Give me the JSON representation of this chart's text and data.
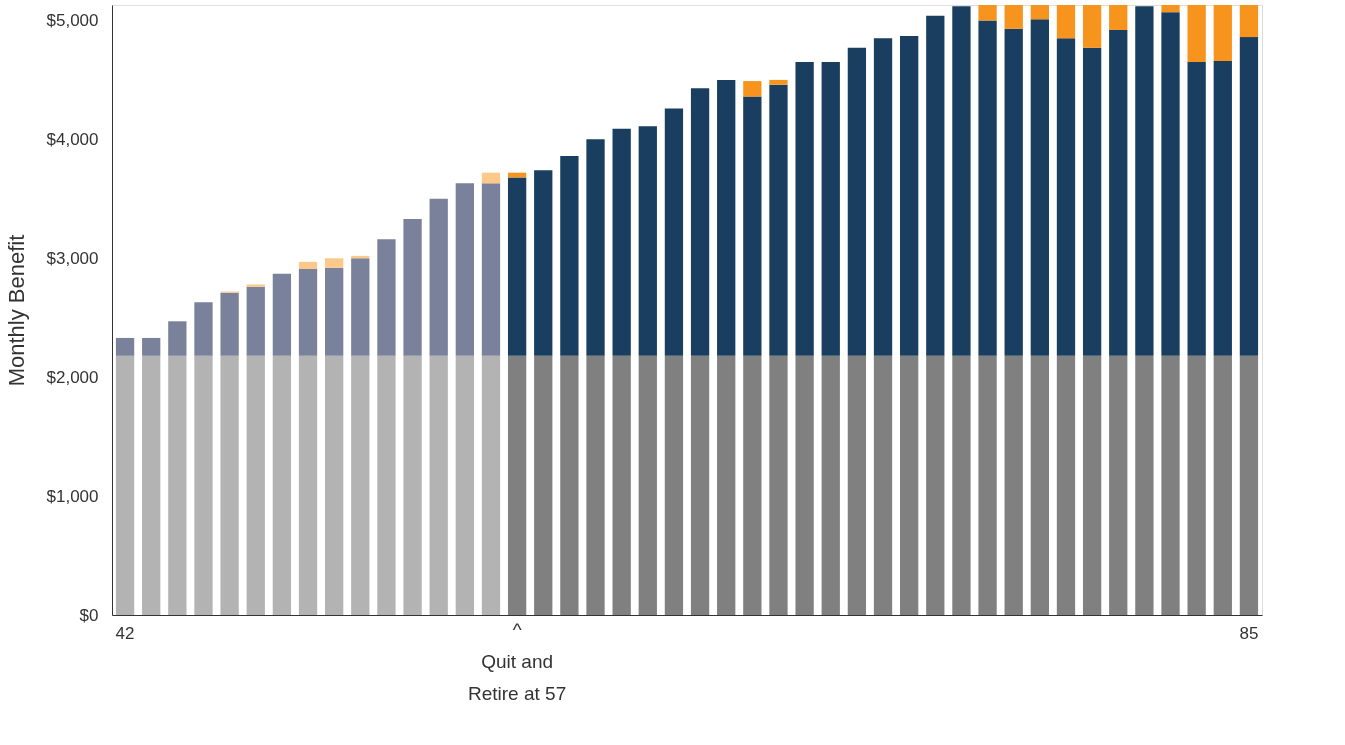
{
  "chart_data": {
    "type": "bar",
    "stacked": true,
    "ylabel": "Monthly Benefit",
    "categories": [
      "42",
      null,
      null,
      null,
      null,
      null,
      null,
      null,
      null,
      null,
      null,
      null,
      null,
      null,
      null,
      null,
      null,
      null,
      null,
      null,
      null,
      null,
      null,
      null,
      null,
      null,
      null,
      null,
      null,
      null,
      null,
      null,
      null,
      null,
      null,
      null,
      null,
      null,
      null,
      null,
      null,
      null,
      null,
      "85"
    ],
    "series": [
      {
        "colors": [
          "#b3b3b3",
          "#b3b3b3",
          "#b3b3b3",
          "#b3b3b3",
          "#b3b3b3",
          "#b3b3b3",
          "#b3b3b3",
          "#b3b3b3",
          "#b3b3b3",
          "#b3b3b3",
          "#b3b3b3",
          "#b3b3b3",
          "#b3b3b3",
          "#b3b3b3",
          "#b3b3b3",
          "#808080",
          "#808080",
          "#808080",
          "#808080",
          "#808080",
          "#808080",
          "#808080",
          "#808080",
          "#808080",
          "#808080",
          "#808080",
          "#808080",
          "#808080",
          "#808080",
          "#808080",
          "#808080",
          "#808080",
          "#808080",
          "#808080",
          "#808080",
          "#808080",
          "#808080",
          "#808080",
          "#808080",
          "#808080",
          "#808080",
          "#808080",
          "#808080",
          "#808080"
        ],
        "values": [
          2180,
          2180,
          2180,
          2180,
          2180,
          2180,
          2180,
          2180,
          2180,
          2180,
          2180,
          2180,
          2180,
          2180,
          2180,
          2180,
          2180,
          2180,
          2180,
          2180,
          2180,
          2180,
          2180,
          2180,
          2180,
          2180,
          2180,
          2180,
          2180,
          2180,
          2180,
          2180,
          2180,
          2180,
          2180,
          2180,
          2180,
          2180,
          2180,
          2180,
          2180,
          2180,
          2180,
          2180
        ]
      },
      {
        "colors": [
          "#7a819b",
          "#7a819b",
          "#7a819b",
          "#7a819b",
          "#7a819b",
          "#7a819b",
          "#7a819b",
          "#7a819b",
          "#7a819b",
          "#7a819b",
          "#7a819b",
          "#7a819b",
          "#7a819b",
          "#7a819b",
          "#7a819b",
          "#1a3e5f",
          "#1a3e5f",
          "#1a3e5f",
          "#1a3e5f",
          "#1a3e5f",
          "#1a3e5f",
          "#1a3e5f",
          "#1a3e5f",
          "#1a3e5f",
          "#1a3e5f",
          "#1a3e5f",
          "#1a3e5f",
          "#1a3e5f",
          "#1a3e5f",
          "#1a3e5f",
          "#1a3e5f",
          "#1a3e5f",
          "#1a3e5f",
          "#1a3e5f",
          "#1a3e5f",
          "#1a3e5f",
          "#1a3e5f",
          "#1a3e5f",
          "#1a3e5f",
          "#1a3e5f",
          "#1a3e5f",
          "#1a3e5f",
          "#1a3e5f",
          "#1a3e5f"
        ],
        "values": [
          150,
          150,
          290,
          450,
          530,
          580,
          690,
          730,
          740,
          820,
          980,
          1150,
          1320,
          1450,
          1450,
          1500,
          1560,
          1680,
          1820,
          1910,
          1930,
          2080,
          2250,
          2320,
          2180,
          2280,
          2470,
          2470,
          2590,
          2670,
          2690,
          2860,
          2940,
          2820,
          2750,
          2830,
          2670,
          2590,
          2740,
          2940,
          2890,
          2470,
          2480,
          2680
        ]
      },
      {
        "colors": [
          "#fcc98a",
          "#fcc98a",
          "#fcc98a",
          "#fcc98a",
          "#fcc98a",
          "#fcc98a",
          "#fcc98a",
          "#fcc98a",
          "#fcc98a",
          "#fcc98a",
          "#fcc98a",
          "#fcc98a",
          "#fcc98a",
          "#fcc98a",
          "#fcc98a",
          "#f7941d",
          "#f7941d",
          "#f7941d",
          "#f7941d",
          "#f7941d",
          "#f7941d",
          "#f7941d",
          "#f7941d",
          "#f7941d",
          "#f7941d",
          "#f7941d",
          "#f7941d",
          "#f7941d",
          "#f7941d",
          "#f7941d",
          "#f7941d",
          "#f7941d",
          "#f7941d",
          "#f7941d",
          "#f7941d",
          "#f7941d",
          "#f7941d",
          "#f7941d",
          "#f7941d",
          "#f7941d",
          "#f7941d",
          "#f7941d",
          "#f7941d",
          "#f7941d"
        ],
        "values": [
          0,
          0,
          0,
          0,
          10,
          20,
          0,
          60,
          80,
          20,
          0,
          0,
          0,
          0,
          90,
          40,
          0,
          0,
          0,
          0,
          0,
          0,
          0,
          0,
          130,
          40,
          0,
          0,
          0,
          0,
          0,
          0,
          0,
          130,
          200,
          120,
          280,
          360,
          210,
          0,
          60,
          480,
          470,
          270
        ]
      }
    ],
    "ylim": [
      0,
      5130
    ],
    "yticks": [
      {
        "value": 0,
        "label": "$0"
      },
      {
        "value": 1000,
        "label": "$1,000"
      },
      {
        "value": 2000,
        "label": "$2,000"
      },
      {
        "value": 3000,
        "label": "$3,000"
      },
      {
        "value": 4000,
        "label": "$4,000"
      },
      {
        "value": 5000,
        "label": "$5,000"
      }
    ],
    "grid": false,
    "annotations": [
      "^\nQuit and\nRetire at 57"
    ]
  }
}
